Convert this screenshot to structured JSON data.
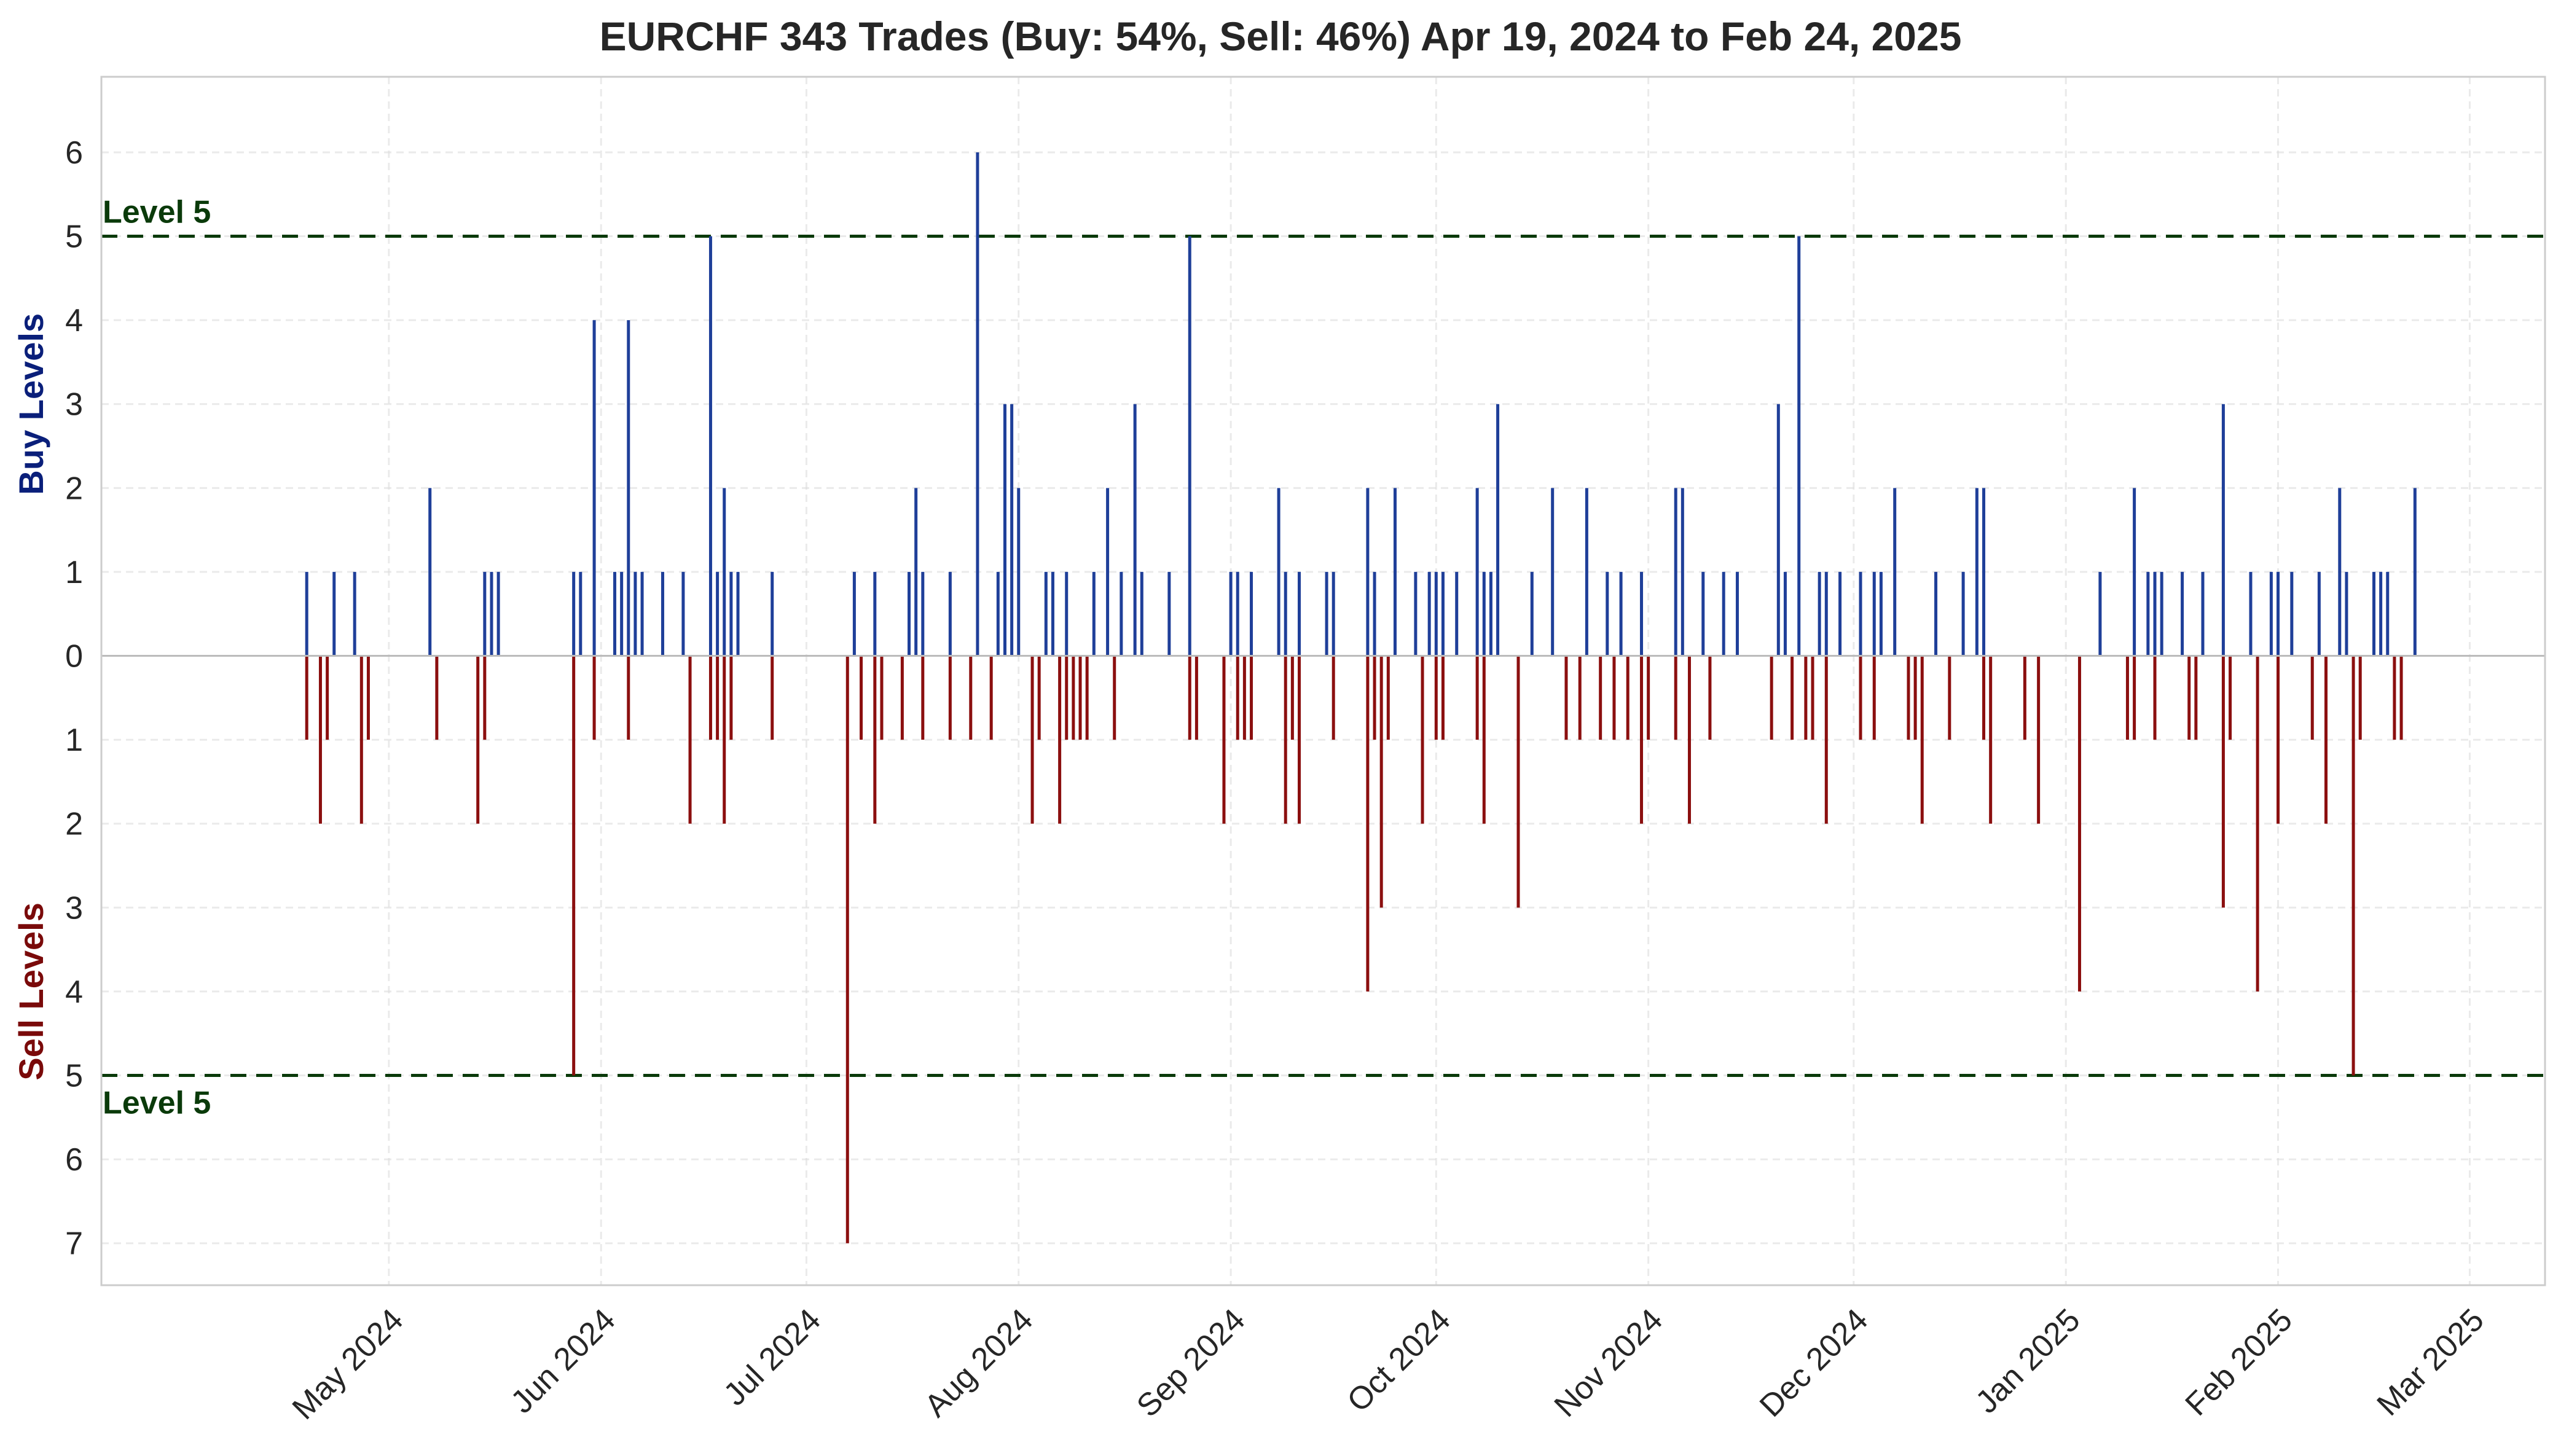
{
  "chart_data": {
    "type": "bar",
    "title": "EURCHF 343 Trades (Buy: 54%, Sell: 46%) Apr 19, 2024 to Feb 24, 2025",
    "ylabel_buy": "Buy Levels",
    "ylabel_sell": "Sell Levels",
    "xlabel": "",
    "x_range": [
      "2024-03-20",
      "2025-03-12"
    ],
    "y_range": [
      -7.5,
      6.9
    ],
    "y_ticks": [
      {
        "value": 6,
        "label": "6"
      },
      {
        "value": 5,
        "label": "5"
      },
      {
        "value": 4,
        "label": "4"
      },
      {
        "value": 3,
        "label": "3"
      },
      {
        "value": 2,
        "label": "2"
      },
      {
        "value": 1,
        "label": "1"
      },
      {
        "value": 0,
        "label": "0"
      },
      {
        "value": -1,
        "label": "1"
      },
      {
        "value": -2,
        "label": "2"
      },
      {
        "value": -3,
        "label": "3"
      },
      {
        "value": -4,
        "label": "4"
      },
      {
        "value": -5,
        "label": "5"
      },
      {
        "value": -6,
        "label": "6"
      },
      {
        "value": -7,
        "label": "7"
      }
    ],
    "x_ticks": [
      {
        "date": "2024-05-01",
        "label": "May 2024"
      },
      {
        "date": "2024-06-01",
        "label": "Jun 2024"
      },
      {
        "date": "2024-07-01",
        "label": "Jul 2024"
      },
      {
        "date": "2024-08-01",
        "label": "Aug 2024"
      },
      {
        "date": "2024-09-01",
        "label": "Sep 2024"
      },
      {
        "date": "2024-10-01",
        "label": "Oct 2024"
      },
      {
        "date": "2024-11-01",
        "label": "Nov 2024"
      },
      {
        "date": "2024-12-01",
        "label": "Dec 2024"
      },
      {
        "date": "2025-01-01",
        "label": "Jan 2025"
      },
      {
        "date": "2025-02-01",
        "label": "Feb 2025"
      },
      {
        "date": "2025-03-01",
        "label": "Mar 2025"
      }
    ],
    "reference_lines": [
      {
        "value": 5,
        "label": "Level 5"
      },
      {
        "value": -5,
        "label": "Level 5"
      }
    ],
    "grid": true,
    "colors": {
      "buy": "#1f3f99",
      "sell": "#8b0f0f",
      "level": "#0a3a0a",
      "zero": "#bbbbbb"
    },
    "series": [
      {
        "name": "Buy",
        "points": [
          [
            "2024-04-19",
            1
          ],
          [
            "2024-04-23",
            1
          ],
          [
            "2024-04-26",
            1
          ],
          [
            "2024-05-07",
            2
          ],
          [
            "2024-05-15",
            1
          ],
          [
            "2024-05-16",
            1
          ],
          [
            "2024-05-17",
            1
          ],
          [
            "2024-05-28",
            1
          ],
          [
            "2024-05-29",
            1
          ],
          [
            "2024-05-31",
            4
          ],
          [
            "2024-06-03",
            1
          ],
          [
            "2024-06-04",
            1
          ],
          [
            "2024-06-05",
            4
          ],
          [
            "2024-06-06",
            1
          ],
          [
            "2024-06-07",
            1
          ],
          [
            "2024-06-10",
            1
          ],
          [
            "2024-06-13",
            1
          ],
          [
            "2024-06-17",
            5
          ],
          [
            "2024-06-18",
            1
          ],
          [
            "2024-06-19",
            2
          ],
          [
            "2024-06-20",
            1
          ],
          [
            "2024-06-21",
            1
          ],
          [
            "2024-06-26",
            1
          ],
          [
            "2024-07-08",
            1
          ],
          [
            "2024-07-11",
            1
          ],
          [
            "2024-07-16",
            1
          ],
          [
            "2024-07-17",
            2
          ],
          [
            "2024-07-18",
            1
          ],
          [
            "2024-07-22",
            1
          ],
          [
            "2024-07-26",
            6
          ],
          [
            "2024-07-29",
            1
          ],
          [
            "2024-07-30",
            3
          ],
          [
            "2024-07-31",
            3
          ],
          [
            "2024-08-01",
            2
          ],
          [
            "2024-08-05",
            1
          ],
          [
            "2024-08-06",
            1
          ],
          [
            "2024-08-08",
            1
          ],
          [
            "2024-08-12",
            1
          ],
          [
            "2024-08-14",
            2
          ],
          [
            "2024-08-16",
            1
          ],
          [
            "2024-08-18",
            3
          ],
          [
            "2024-08-19",
            1
          ],
          [
            "2024-08-23",
            1
          ],
          [
            "2024-08-26",
            5
          ],
          [
            "2024-09-01",
            1
          ],
          [
            "2024-09-02",
            1
          ],
          [
            "2024-09-04",
            1
          ],
          [
            "2024-09-08",
            2
          ],
          [
            "2024-09-09",
            1
          ],
          [
            "2024-09-11",
            1
          ],
          [
            "2024-09-15",
            1
          ],
          [
            "2024-09-16",
            1
          ],
          [
            "2024-09-21",
            2
          ],
          [
            "2024-09-22",
            1
          ],
          [
            "2024-09-25",
            2
          ],
          [
            "2024-09-28",
            1
          ],
          [
            "2024-09-30",
            1
          ],
          [
            "2024-10-01",
            1
          ],
          [
            "2024-10-02",
            1
          ],
          [
            "2024-10-04",
            1
          ],
          [
            "2024-10-07",
            2
          ],
          [
            "2024-10-08",
            1
          ],
          [
            "2024-10-09",
            1
          ],
          [
            "2024-10-10",
            3
          ],
          [
            "2024-10-15",
            1
          ],
          [
            "2024-10-18",
            2
          ],
          [
            "2024-10-23",
            2
          ],
          [
            "2024-10-26",
            1
          ],
          [
            "2024-10-28",
            1
          ],
          [
            "2024-10-31",
            1
          ],
          [
            "2024-11-05",
            2
          ],
          [
            "2024-11-06",
            2
          ],
          [
            "2024-11-09",
            1
          ],
          [
            "2024-11-12",
            1
          ],
          [
            "2024-11-14",
            1
          ],
          [
            "2024-11-20",
            3
          ],
          [
            "2024-11-21",
            1
          ],
          [
            "2024-11-23",
            5
          ],
          [
            "2024-11-26",
            1
          ],
          [
            "2024-11-27",
            1
          ],
          [
            "2024-11-29",
            1
          ],
          [
            "2024-12-02",
            1
          ],
          [
            "2024-12-04",
            1
          ],
          [
            "2024-12-05",
            1
          ],
          [
            "2024-12-07",
            2
          ],
          [
            "2024-12-13",
            1
          ],
          [
            "2024-12-17",
            1
          ],
          [
            "2024-12-19",
            2
          ],
          [
            "2024-12-20",
            2
          ],
          [
            "2025-01-06",
            1
          ],
          [
            "2025-01-11",
            2
          ],
          [
            "2025-01-13",
            1
          ],
          [
            "2025-01-14",
            1
          ],
          [
            "2025-01-15",
            1
          ],
          [
            "2025-01-18",
            1
          ],
          [
            "2025-01-21",
            1
          ],
          [
            "2025-01-24",
            3
          ],
          [
            "2025-01-28",
            1
          ],
          [
            "2025-01-31",
            1
          ],
          [
            "2025-02-01",
            1
          ],
          [
            "2025-02-03",
            1
          ],
          [
            "2025-02-07",
            1
          ],
          [
            "2025-02-10",
            2
          ],
          [
            "2025-02-11",
            1
          ],
          [
            "2025-02-15",
            1
          ],
          [
            "2025-02-16",
            1
          ],
          [
            "2025-02-17",
            1
          ],
          [
            "2025-02-21",
            2
          ]
        ]
      },
      {
        "name": "Sell",
        "points": [
          [
            "2024-04-19",
            1
          ],
          [
            "2024-04-21",
            2
          ],
          [
            "2024-04-22",
            1
          ],
          [
            "2024-04-27",
            2
          ],
          [
            "2024-04-28",
            1
          ],
          [
            "2024-05-08",
            1
          ],
          [
            "2024-05-14",
            2
          ],
          [
            "2024-05-15",
            1
          ],
          [
            "2024-05-28",
            5
          ],
          [
            "2024-05-31",
            1
          ],
          [
            "2024-06-05",
            1
          ],
          [
            "2024-06-14",
            2
          ],
          [
            "2024-06-17",
            1
          ],
          [
            "2024-06-18",
            1
          ],
          [
            "2024-06-19",
            2
          ],
          [
            "2024-06-20",
            1
          ],
          [
            "2024-06-26",
            1
          ],
          [
            "2024-07-07",
            7
          ],
          [
            "2024-07-09",
            1
          ],
          [
            "2024-07-11",
            2
          ],
          [
            "2024-07-12",
            1
          ],
          [
            "2024-07-15",
            1
          ],
          [
            "2024-07-18",
            1
          ],
          [
            "2024-07-22",
            1
          ],
          [
            "2024-07-25",
            1
          ],
          [
            "2024-07-28",
            1
          ],
          [
            "2024-08-03",
            2
          ],
          [
            "2024-08-04",
            1
          ],
          [
            "2024-08-07",
            2
          ],
          [
            "2024-08-08",
            1
          ],
          [
            "2024-08-09",
            1
          ],
          [
            "2024-08-10",
            1
          ],
          [
            "2024-08-11",
            1
          ],
          [
            "2024-08-15",
            1
          ],
          [
            "2024-08-26",
            1
          ],
          [
            "2024-08-27",
            1
          ],
          [
            "2024-08-31",
            2
          ],
          [
            "2024-09-02",
            1
          ],
          [
            "2024-09-03",
            1
          ],
          [
            "2024-09-04",
            1
          ],
          [
            "2024-09-09",
            2
          ],
          [
            "2024-09-10",
            1
          ],
          [
            "2024-09-11",
            2
          ],
          [
            "2024-09-16",
            1
          ],
          [
            "2024-09-21",
            4
          ],
          [
            "2024-09-22",
            1
          ],
          [
            "2024-09-23",
            3
          ],
          [
            "2024-09-24",
            1
          ],
          [
            "2024-09-29",
            2
          ],
          [
            "2024-10-01",
            1
          ],
          [
            "2024-10-02",
            1
          ],
          [
            "2024-10-07",
            1
          ],
          [
            "2024-10-08",
            2
          ],
          [
            "2024-10-13",
            3
          ],
          [
            "2024-10-20",
            1
          ],
          [
            "2024-10-22",
            1
          ],
          [
            "2024-10-25",
            1
          ],
          [
            "2024-10-27",
            1
          ],
          [
            "2024-10-29",
            1
          ],
          [
            "2024-10-31",
            2
          ],
          [
            "2024-11-01",
            1
          ],
          [
            "2024-11-05",
            1
          ],
          [
            "2024-11-07",
            2
          ],
          [
            "2024-11-10",
            1
          ],
          [
            "2024-11-19",
            1
          ],
          [
            "2024-11-22",
            1
          ],
          [
            "2024-11-24",
            1
          ],
          [
            "2024-11-25",
            1
          ],
          [
            "2024-11-27",
            2
          ],
          [
            "2024-12-02",
            1
          ],
          [
            "2024-12-04",
            1
          ],
          [
            "2024-12-09",
            1
          ],
          [
            "2024-12-10",
            1
          ],
          [
            "2024-12-11",
            2
          ],
          [
            "2024-12-15",
            1
          ],
          [
            "2024-12-20",
            1
          ],
          [
            "2024-12-21",
            2
          ],
          [
            "2024-12-26",
            1
          ],
          [
            "2024-12-28",
            2
          ],
          [
            "2025-01-03",
            4
          ],
          [
            "2025-01-10",
            1
          ],
          [
            "2025-01-11",
            1
          ],
          [
            "2025-01-14",
            1
          ],
          [
            "2025-01-19",
            1
          ],
          [
            "2025-01-20",
            1
          ],
          [
            "2025-01-24",
            3
          ],
          [
            "2025-01-25",
            1
          ],
          [
            "2025-01-29",
            4
          ],
          [
            "2025-02-01",
            2
          ],
          [
            "2025-02-06",
            1
          ],
          [
            "2025-02-08",
            2
          ],
          [
            "2025-02-12",
            5
          ],
          [
            "2025-02-13",
            1
          ],
          [
            "2025-02-18",
            1
          ],
          [
            "2025-02-19",
            1
          ]
        ]
      }
    ]
  }
}
